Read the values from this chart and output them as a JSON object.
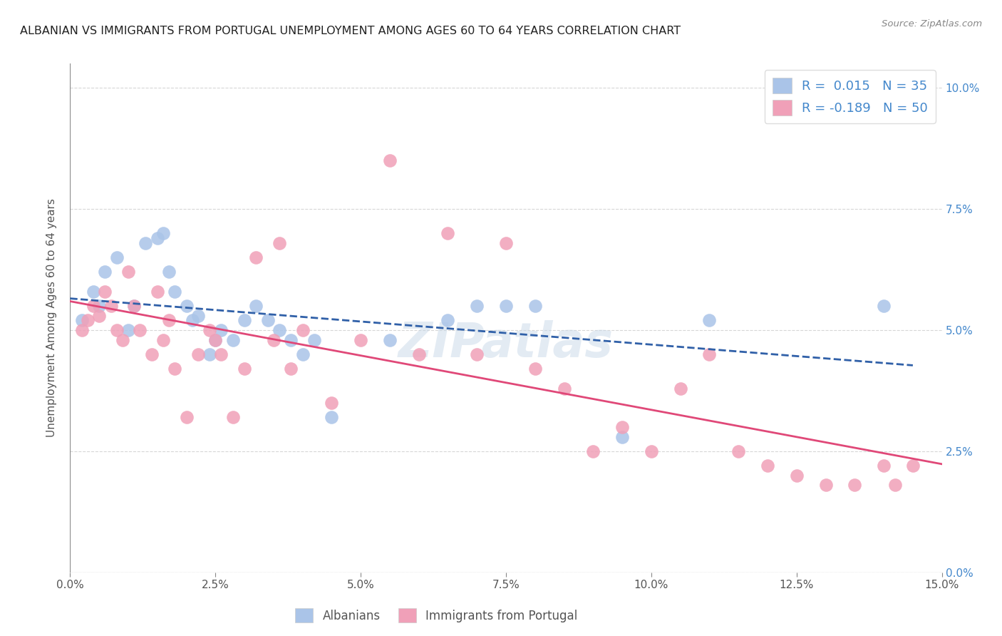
{
  "title": "ALBANIAN VS IMMIGRANTS FROM PORTUGAL UNEMPLOYMENT AMONG AGES 60 TO 64 YEARS CORRELATION CHART",
  "source": "Source: ZipAtlas.com",
  "ylabel": "Unemployment Among Ages 60 to 64 years",
  "xlim": [
    0.0,
    15.0
  ],
  "ylim": [
    0.0,
    10.5
  ],
  "albanians_color": "#aac4e8",
  "portugal_color": "#f0a0b8",
  "trendline_albanian_color": "#3060a8",
  "trendline_portugal_color": "#e04878",
  "albanians_x": [
    0.2,
    0.4,
    0.5,
    0.6,
    0.8,
    1.0,
    1.1,
    1.3,
    1.5,
    1.6,
    1.7,
    1.8,
    2.0,
    2.1,
    2.2,
    2.4,
    2.5,
    2.6,
    2.8,
    3.0,
    3.2,
    3.4,
    3.6,
    3.8,
    4.0,
    4.2,
    4.5,
    5.5,
    6.5,
    7.0,
    7.5,
    8.0,
    9.5,
    11.0,
    14.0
  ],
  "albanians_y": [
    5.2,
    5.8,
    5.5,
    6.2,
    6.5,
    5.0,
    5.5,
    6.8,
    6.9,
    7.0,
    6.2,
    5.8,
    5.5,
    5.2,
    5.3,
    4.5,
    4.8,
    5.0,
    4.8,
    5.2,
    5.5,
    5.2,
    5.0,
    4.8,
    4.5,
    4.8,
    3.2,
    4.8,
    5.2,
    5.5,
    5.5,
    5.5,
    2.8,
    5.2,
    5.5
  ],
  "portugal_x": [
    0.2,
    0.3,
    0.4,
    0.5,
    0.6,
    0.7,
    0.8,
    0.9,
    1.0,
    1.1,
    1.2,
    1.4,
    1.5,
    1.6,
    1.7,
    1.8,
    2.0,
    2.2,
    2.4,
    2.5,
    2.6,
    2.8,
    3.0,
    3.2,
    3.5,
    3.6,
    3.8,
    4.0,
    4.5,
    5.0,
    5.5,
    6.0,
    6.5,
    7.0,
    7.5,
    8.0,
    8.5,
    9.0,
    9.5,
    10.0,
    10.5,
    11.0,
    11.5,
    12.0,
    12.5,
    13.0,
    13.5,
    14.0,
    14.2,
    14.5
  ],
  "portugal_y": [
    5.0,
    5.2,
    5.5,
    5.3,
    5.8,
    5.5,
    5.0,
    4.8,
    6.2,
    5.5,
    5.0,
    4.5,
    5.8,
    4.8,
    5.2,
    4.2,
    3.2,
    4.5,
    5.0,
    4.8,
    4.5,
    3.2,
    4.2,
    6.5,
    4.8,
    6.8,
    4.2,
    5.0,
    3.5,
    4.8,
    8.5,
    4.5,
    7.0,
    4.5,
    6.8,
    4.2,
    3.8,
    2.5,
    3.0,
    2.5,
    3.8,
    4.5,
    2.5,
    2.2,
    2.0,
    1.8,
    1.8,
    2.2,
    1.8,
    2.2
  ],
  "legend_albanian_R": "R =  0.015",
  "legend_albanian_N": "N = 35",
  "legend_portugal_R": "R = -0.189",
  "legend_portugal_N": "N = 50",
  "background_color": "#ffffff",
  "grid_color": "#cccccc",
  "watermark": "ZIPatlas",
  "x_tick_vals": [
    0.0,
    2.5,
    5.0,
    7.5,
    10.0,
    12.5,
    15.0
  ],
  "y_tick_vals": [
    0.0,
    2.5,
    5.0,
    7.5,
    10.0
  ]
}
